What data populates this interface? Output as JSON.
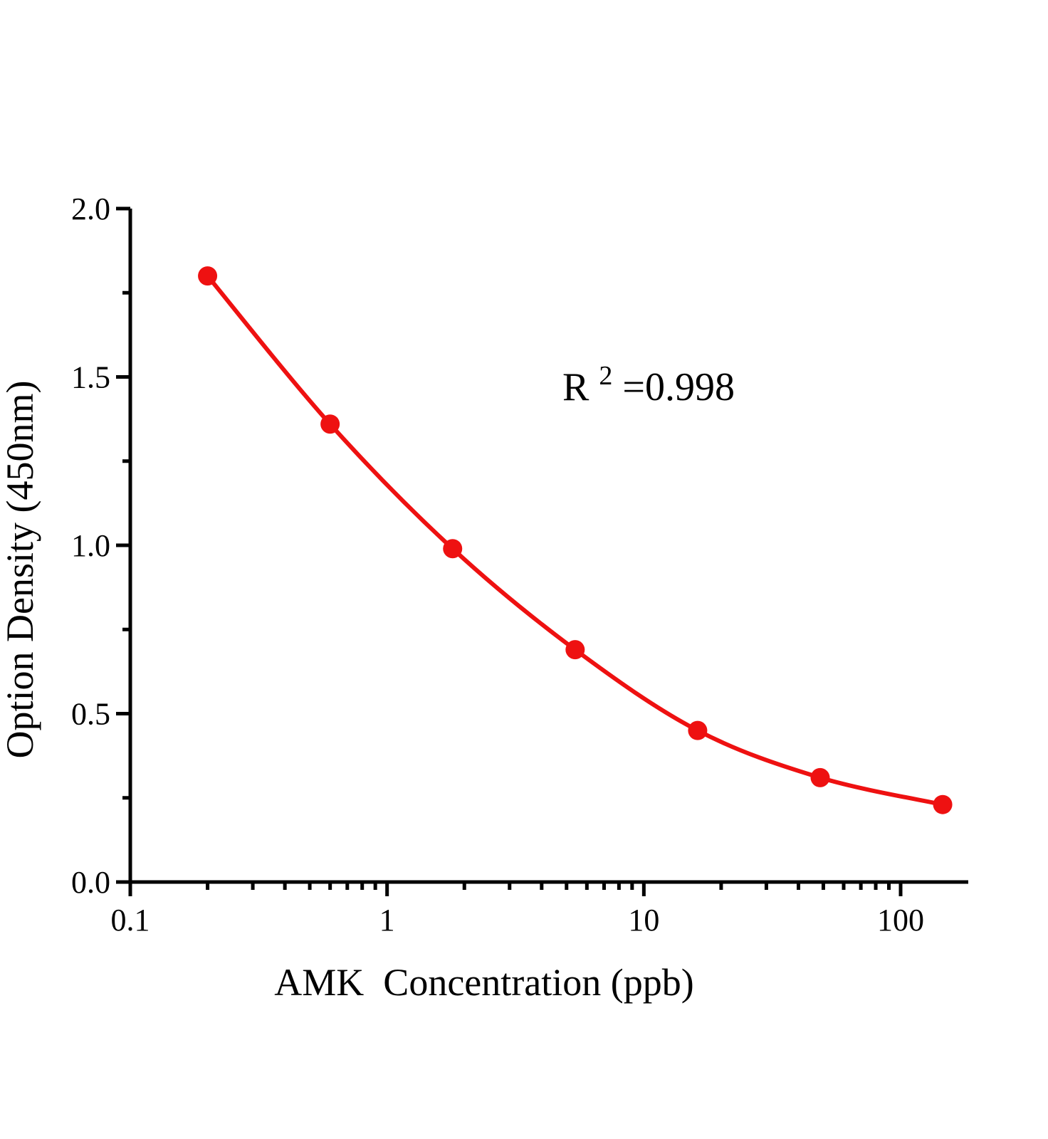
{
  "figure": {
    "background": "#ffffff",
    "axis_color": "#000000"
  },
  "chart_data": {
    "type": "scatter",
    "title": "",
    "xlabel": "AMK  Concentration (ppb)",
    "ylabel": "Option Density (450nm)",
    "x_scale": "log",
    "y_scale": "linear",
    "xlim": [
      0.1,
      175
    ],
    "ylim": [
      0.0,
      2.0
    ],
    "grid": false,
    "legend_position": "none",
    "x_major_ticks": {
      "values": [
        0.1,
        1,
        10,
        100
      ],
      "labels": [
        "0.1",
        "1",
        "10",
        "100"
      ]
    },
    "x_minor_ticks": "log-decades-2-to-9",
    "y_major_ticks": {
      "values": [
        0.0,
        0.5,
        1.0,
        1.5,
        2.0
      ],
      "labels": [
        "0.0",
        "0.5",
        "1.0",
        "1.5",
        "2.0"
      ]
    },
    "y_minor_ticks": [
      0.25,
      0.75,
      1.25,
      1.75
    ],
    "series": [
      {
        "color": "#ee1111",
        "marker": "circle",
        "line": "smooth",
        "x": [
          0.2,
          0.6,
          1.8,
          5.4,
          16.2,
          48.6,
          145.8
        ],
        "y": [
          1.8,
          1.36,
          0.99,
          0.69,
          0.45,
          0.31,
          0.23
        ]
      }
    ],
    "annotation": {
      "text": "R²=0.998",
      "base": "R",
      "sup": "2",
      "rest": "=0.998"
    }
  }
}
